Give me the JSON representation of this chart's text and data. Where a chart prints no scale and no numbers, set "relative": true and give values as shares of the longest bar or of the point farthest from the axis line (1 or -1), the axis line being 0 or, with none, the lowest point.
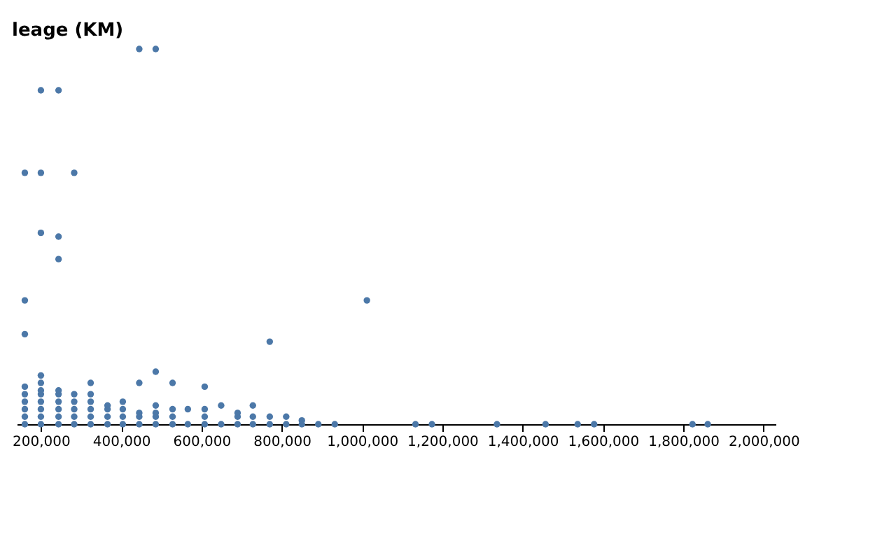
{
  "chart_data": {
    "type": "scatter",
    "ylabel": "leage (KM)",
    "relative": true,
    "grid": false,
    "marker": "circle",
    "xlim": [
      140000,
      2030000
    ],
    "xticks": [
      {
        "value": 200000,
        "label": "200,000"
      },
      {
        "value": 400000,
        "label": "400,000"
      },
      {
        "value": 600000,
        "label": "600,000"
      },
      {
        "value": 800000,
        "label": "800,000"
      },
      {
        "value": 1000000,
        "label": "1,000,000"
      },
      {
        "value": 1200000,
        "label": "1,200,000"
      },
      {
        "value": 1400000,
        "label": "1,400,000"
      },
      {
        "value": 1600000,
        "label": "1,600,000"
      },
      {
        "value": 1800000,
        "label": "1,800,000"
      },
      {
        "value": 2000000,
        "label": "2,000,000"
      }
    ],
    "series": [
      {
        "color": "#4c78a8",
        "x": [
          160000,
          160000,
          160000,
          160000,
          160000,
          160000,
          160000,
          160000,
          160000,
          200000,
          200000,
          200000,
          200000,
          200000,
          200000,
          200000,
          200000,
          200000,
          200000,
          200000,
          244000,
          244000,
          244000,
          244000,
          244000,
          244000,
          244000,
          244000,
          244000,
          283000,
          283000,
          283000,
          283000,
          283000,
          283000,
          324000,
          324000,
          324000,
          324000,
          324000,
          324000,
          366000,
          366000,
          366000,
          366000,
          404000,
          404000,
          404000,
          404000,
          445000,
          445000,
          445000,
          445000,
          445000,
          486000,
          486000,
          486000,
          486000,
          486000,
          486000,
          528000,
          528000,
          528000,
          528000,
          566000,
          566000,
          608000,
          608000,
          608000,
          608000,
          649000,
          649000,
          690000,
          690000,
          690000,
          728000,
          728000,
          728000,
          770000,
          770000,
          770000,
          811000,
          811000,
          850000,
          850000,
          891000,
          932000,
          1012000,
          1133000,
          1174000,
          1336000,
          1457000,
          1537000,
          1578000,
          1823000,
          1861000
        ],
        "values": [
          0,
          0.02,
          0.04,
          0.06,
          0.08,
          0.1,
          0.24,
          0.33,
          0.67,
          0,
          0.02,
          0.04,
          0.06,
          0.08,
          0.09,
          0.11,
          0.13,
          0.51,
          0.67,
          0.89,
          0,
          0.02,
          0.04,
          0.06,
          0.08,
          0.09,
          0.44,
          0.5,
          0.89,
          0,
          0.02,
          0.04,
          0.06,
          0.08,
          0.67,
          0,
          0.02,
          0.04,
          0.06,
          0.08,
          0.11,
          0,
          0.02,
          0.04,
          0.05,
          0,
          0.02,
          0.04,
          0.06,
          0,
          0.02,
          0.03,
          0.11,
          1,
          0,
          0.02,
          0.03,
          0.05,
          0.14,
          1,
          0,
          0.02,
          0.04,
          0.11,
          0,
          0.04,
          0,
          0.02,
          0.04,
          0.1,
          0,
          0.05,
          0,
          0.02,
          0.03,
          0,
          0.02,
          0.05,
          0,
          0.02,
          0.22,
          0,
          0.02,
          0,
          0.01,
          0,
          0,
          0.33,
          0,
          0,
          0,
          0,
          0,
          0,
          0,
          0
        ]
      }
    ]
  }
}
